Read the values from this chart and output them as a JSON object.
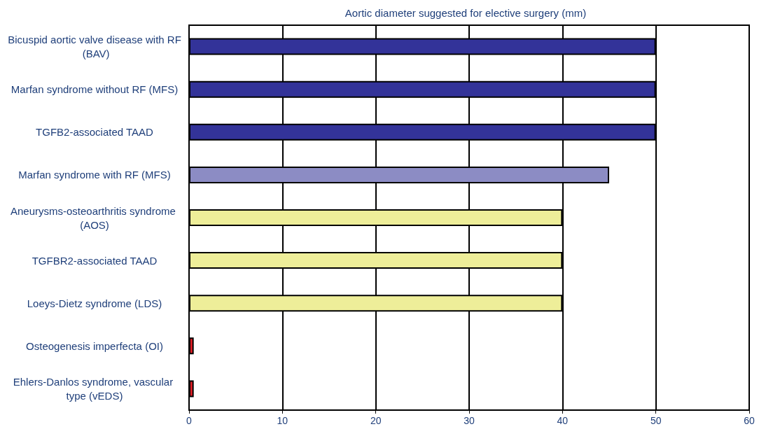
{
  "chart_data": {
    "type": "bar",
    "orientation": "horizontal",
    "title": "Aortic diameter suggested for elective surgery (mm)",
    "categories": [
      "Bicuspid aortic valve disease with RF (BAV)",
      "Marfan syndrome without RF (MFS)",
      "TGFB2-associated TAAD",
      "Marfan syndrome with RF (MFS)",
      "Aneurysms-osteoarthritis syndrome (AOS)",
      "TGFBR2-associated TAAD",
      "Loeys-Dietz syndrome (LDS)",
      "Osteogenesis imperfecta (OI)",
      "Ehlers-Danlos syndrome, vascular type (vEDS)"
    ],
    "values": [
      50,
      50,
      50,
      45,
      40,
      40,
      40,
      0.5,
      0.5
    ],
    "colors": [
      "#333399",
      "#333399",
      "#333399",
      "#8c8cc4",
      "#eeee99",
      "#eeee99",
      "#eeee99",
      "#e41e26",
      "#e41e26"
    ],
    "xlim": [
      0,
      60
    ],
    "xticks": [
      0,
      10,
      20,
      30,
      40,
      50,
      60
    ],
    "grid": "x"
  }
}
